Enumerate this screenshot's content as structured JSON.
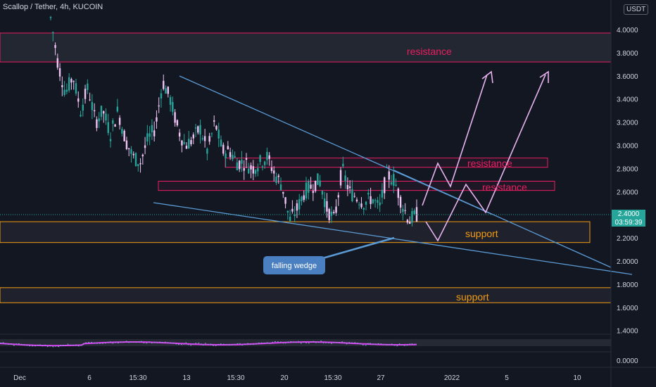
{
  "header": {
    "symbol_line": "Scallop / Tether, 4h, KUCOIN"
  },
  "currency_badge": "USDT",
  "price_label": {
    "value": "2.4000",
    "countdown": "03:59:39"
  },
  "annotations": {
    "resistance_top": "resistance",
    "resistance_mid_1": "resistance",
    "resistance_mid_2": "resistance",
    "support_1": "support",
    "support_2": "support",
    "falling_wedge": "falling wedge"
  },
  "colors": {
    "background": "#131722",
    "resistance": "#e91e63",
    "support": "#f39c12",
    "wedge": "#5b9bd5",
    "projection": "#e8b4f0",
    "candle_up": "#26a69a",
    "candle_down": "#f0c4f5",
    "oscillator": "#e040fb",
    "price_box": "#26a69a"
  },
  "chart_data": {
    "type": "candlestick",
    "y_axis": {
      "ticks": [
        "4.0000",
        "3.8000",
        "3.6000",
        "3.4000",
        "3.2000",
        "3.0000",
        "2.8000",
        "2.6000",
        "2.4000",
        "2.2000",
        "2.0000",
        "1.8000",
        "1.6000",
        "1.4000"
      ],
      "range": [
        1.35,
        4.25
      ]
    },
    "oscillator_axis": {
      "ticks": [
        "0.0000"
      ]
    },
    "x_axis": {
      "ticks": [
        "Dec",
        "6",
        "15:30",
        "13",
        "15:30",
        "20",
        "15:30",
        "27",
        "2022",
        "5",
        "10"
      ]
    },
    "current_price": 2.4,
    "candles_close_path": [
      4.1,
      3.7,
      3.45,
      3.6,
      3.3,
      3.5,
      3.2,
      3.3,
      3.1,
      3.3,
      3.05,
      2.9,
      2.85,
      3.05,
      3.15,
      3.55,
      3.4,
      3.15,
      3.0,
      3.05,
      3.15,
      2.95,
      3.2,
      2.95,
      2.95,
      2.85,
      2.85,
      2.8,
      2.85,
      2.9,
      2.75,
      2.65,
      2.35,
      2.45,
      2.6,
      2.65,
      2.7,
      2.45,
      2.35,
      2.8,
      2.6,
      2.55,
      2.5,
      2.55,
      2.45,
      2.75,
      2.7,
      2.5,
      2.35,
      2.4
    ],
    "zones": {
      "resistance": [
        [
          3.72,
          3.97
        ],
        [
          2.81,
          2.89
        ],
        [
          2.61,
          2.69
        ]
      ],
      "support": [
        [
          2.16,
          2.34
        ],
        [
          1.64,
          1.77
        ]
      ]
    }
  }
}
